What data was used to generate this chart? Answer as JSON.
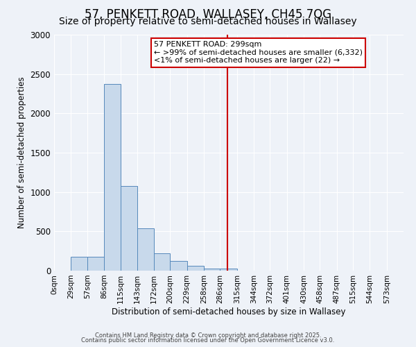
{
  "title_line1": "57, PENKETT ROAD, WALLASEY, CH45 7QG",
  "title_line2": "Size of property relative to semi-detached houses in Wallasey",
  "xlabel": "Distribution of semi-detached houses by size in Wallasey",
  "ylabel": "Number of semi-detached properties",
  "bin_labels": [
    "0sqm",
    "29sqm",
    "57sqm",
    "86sqm",
    "115sqm",
    "143sqm",
    "172sqm",
    "200sqm",
    "229sqm",
    "258sqm",
    "286sqm",
    "315sqm",
    "344sqm",
    "372sqm",
    "401sqm",
    "430sqm",
    "458sqm",
    "487sqm",
    "515sqm",
    "544sqm",
    "573sqm"
  ],
  "bin_edges": [
    0,
    29,
    57,
    86,
    115,
    143,
    172,
    200,
    229,
    258,
    286,
    315,
    344,
    372,
    401,
    430,
    458,
    487,
    515,
    544,
    573,
    602
  ],
  "bar_heights": [
    0,
    175,
    175,
    2375,
    1075,
    540,
    225,
    125,
    60,
    30,
    30,
    0,
    0,
    0,
    0,
    0,
    0,
    0,
    0,
    0,
    0
  ],
  "bar_color": "#c8d9eb",
  "bar_edge_color": "#5588bb",
  "red_line_x": 299,
  "annotation_title": "57 PENKETT ROAD: 299sqm",
  "annotation_line2": "← >99% of semi-detached houses are smaller (6,332)",
  "annotation_line3": "<1% of semi-detached houses are larger (22) →",
  "annotation_box_color": "#ffffff",
  "annotation_border_color": "#cc0000",
  "ylim": [
    0,
    3000
  ],
  "xlim": [
    0,
    602
  ],
  "bg_color": "#eef2f8",
  "grid_color": "#ffffff",
  "footnote1": "Contains HM Land Registry data © Crown copyright and database right 2025.",
  "footnote2": "Contains public sector information licensed under the Open Government Licence v3.0.",
  "title_fontsize": 12,
  "subtitle_fontsize": 10,
  "tick_fontsize": 7.5,
  "ylabel_fontsize": 8.5,
  "xlabel_fontsize": 8.5,
  "annotation_fontsize": 8,
  "footnote_fontsize": 6
}
